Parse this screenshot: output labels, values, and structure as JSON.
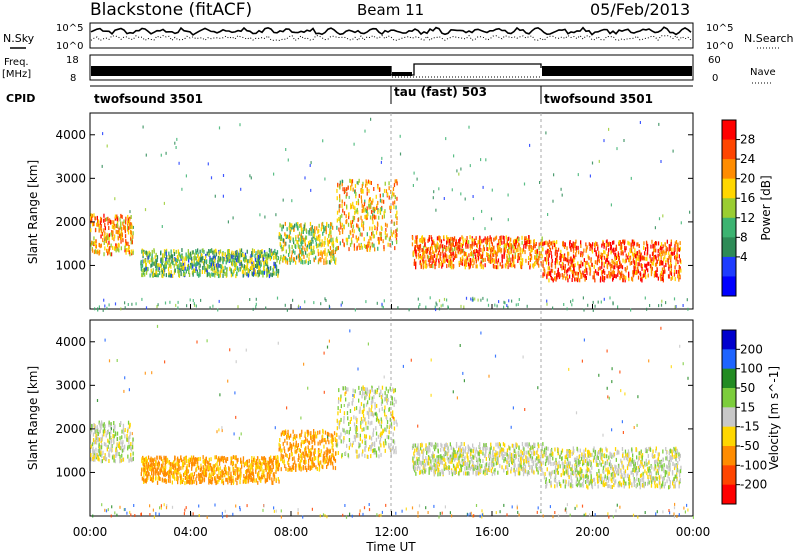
{
  "header": {
    "station": "Blackstone (fitACF)",
    "beam": "Beam 11",
    "date": "05/Feb/2013"
  },
  "left_labels": {
    "nsky": "N.Sky",
    "freq_line1": "Freq.",
    "freq_line2": "[MHz]",
    "cpid": "CPID"
  },
  "right_labels": {
    "nsearch": "N.Search",
    "nave": "Nave"
  },
  "noise_panel": {
    "left_ticks": [
      "10^5",
      "10^0"
    ],
    "right_ticks": [
      "10^5",
      "10^0"
    ]
  },
  "freq_panel": {
    "left_ticks": [
      "18",
      "8"
    ],
    "right_ticks": [
      "60",
      "0"
    ]
  },
  "cpid_panel": {
    "segments": [
      {
        "label": "twofsound 3501",
        "start_hour": 0,
        "end_hour": 12
      },
      {
        "label": "tau (fast) 503",
        "start_hour": 12,
        "end_hour": 18
      },
      {
        "label": "twofsound 3501",
        "start_hour": 18,
        "end_hour": 24
      }
    ]
  },
  "power_colorbar": {
    "label": "Power [dB]",
    "ticks": [
      "28",
      "24",
      "20",
      "16",
      "12",
      "8",
      "4"
    ],
    "colors": [
      "#ff0000",
      "#ff4500",
      "#ff8c00",
      "#ffd700",
      "#9acd32",
      "#3cb371",
      "#2e8b57",
      "#1e3cff",
      "#0000ff"
    ]
  },
  "velocity_colorbar": {
    "label": "Velocity [m s^-1]",
    "ticks": [
      "200",
      "100",
      "50",
      "15",
      "-15",
      "-50",
      "-100",
      "-200"
    ],
    "colors": [
      "#0000cd",
      "#1e64ff",
      "#228b22",
      "#7ccd3c",
      "#c8c8c8",
      "#ffd700",
      "#ff8c00",
      "#ff4500",
      "#ff0000"
    ]
  },
  "chart_data": [
    {
      "type": "heatmap",
      "name": "power",
      "xlabel": "",
      "ylabel": "Slant Range [km]",
      "xlim": [
        0,
        24
      ],
      "ylim": [
        0,
        4500
      ],
      "y_ticks": [
        1000,
        2000,
        3000,
        4000
      ],
      "x_ticks_hours": [
        0,
        4,
        8,
        12,
        16,
        20,
        24
      ],
      "colorbar_ticks_dB": [
        4,
        8,
        12,
        16,
        20,
        24,
        28
      ],
      "scatter_bands": [
        {
          "start": 0,
          "end": 1.7,
          "low": 1300,
          "high": 2200,
          "value_dB": 22
        },
        {
          "start": 2.0,
          "end": 7.5,
          "low": 800,
          "high": 1400,
          "value_dB": 12
        },
        {
          "start": 7.5,
          "end": 9.8,
          "low": 1100,
          "high": 2000,
          "value_dB": 16
        },
        {
          "start": 9.8,
          "end": 12.2,
          "low": 1400,
          "high": 3000,
          "value_dB": 20
        },
        {
          "start": 12.8,
          "end": 18.0,
          "low": 1000,
          "high": 1700,
          "value_dB": 24
        },
        {
          "start": 18.0,
          "end": 23.5,
          "low": 700,
          "high": 1600,
          "value_dB": 26
        }
      ]
    },
    {
      "type": "heatmap",
      "name": "velocity",
      "xlabel": "Time UT",
      "ylabel": "Slant Range [km]",
      "xlim": [
        0,
        24
      ],
      "ylim": [
        0,
        4500
      ],
      "y_ticks": [
        1000,
        2000,
        3000,
        4000
      ],
      "x_tick_labels": [
        "00:00",
        "04:00",
        "08:00",
        "12:00",
        "16:00",
        "20:00",
        "00:00"
      ],
      "colorbar_ticks_ms": [
        -200,
        -100,
        -50,
        -15,
        15,
        50,
        100,
        200
      ],
      "scatter_bands": [
        {
          "start": 0,
          "end": 1.7,
          "low": 1300,
          "high": 2200,
          "value_ms": 0
        },
        {
          "start": 2.0,
          "end": 7.5,
          "low": 800,
          "high": 1400,
          "value_ms": -60
        },
        {
          "start": 7.5,
          "end": 9.8,
          "low": 1100,
          "high": 2000,
          "value_ms": -60
        },
        {
          "start": 9.8,
          "end": 12.2,
          "low": 1400,
          "high": 3000,
          "value_ms": 0
        },
        {
          "start": 12.8,
          "end": 18.0,
          "low": 1000,
          "high": 1700,
          "value_ms": 0
        },
        {
          "start": 18.0,
          "end": 23.5,
          "low": 700,
          "high": 1600,
          "value_ms": 0
        }
      ]
    }
  ]
}
